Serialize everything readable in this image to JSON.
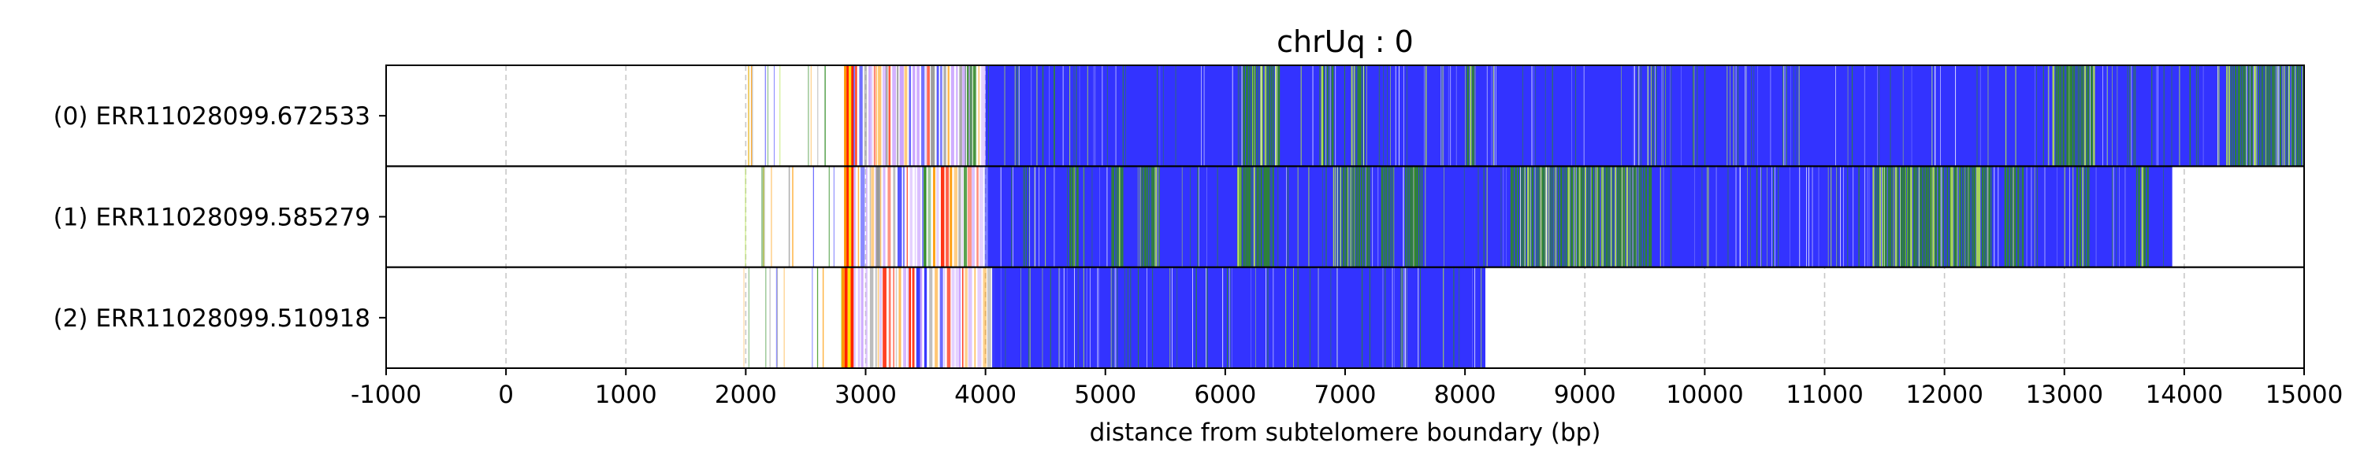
{
  "chart_data": {
    "type": "heatmap",
    "title": "chrUq : 0",
    "xlabel": "distance from subtelomere boundary (bp)",
    "ylabel": "",
    "xlim": [
      -1000,
      15000
    ],
    "xticks": [
      -1000,
      0,
      1000,
      2000,
      3000,
      4000,
      5000,
      6000,
      7000,
      8000,
      9000,
      10000,
      11000,
      12000,
      13000,
      14000,
      15000
    ],
    "xtick_labels": [
      "-1000",
      "0",
      "1000",
      "2000",
      "3000",
      "4000",
      "5000",
      "6000",
      "7000",
      "8000",
      "9000",
      "10000",
      "11000",
      "12000",
      "13000",
      "14000",
      "15000"
    ],
    "grid": "vertical dashed",
    "colors": {
      "repeat_main": "#3333ff",
      "repeat_variant": "#2e8b22",
      "variant_light": "#b4e54a",
      "hot_red": "#ff2200",
      "hot_orange": "#ff9900",
      "hot_yellow": "#ffe000",
      "lilac": "#c8a0ff",
      "grey": "#999999"
    },
    "reads": [
      {
        "label": "(0) ERR11028099.672533",
        "start": 1980,
        "end": 15000,
        "blue_from": 4000,
        "hot_zone": [
          2820,
          2900
        ],
        "green_clusters": [
          [
            3830,
            3920
          ],
          [
            6150,
            6450
          ],
          [
            6800,
            6900
          ],
          [
            7050,
            7150
          ],
          [
            8000,
            8080
          ],
          [
            12900,
            13250
          ],
          [
            14350,
            15000
          ]
        ],
        "seed": 11
      },
      {
        "label": "(1) ERR11028099.585279",
        "start": 1920,
        "end": 13900,
        "blue_from": 4020,
        "hot_zone": [
          2820,
          2900
        ],
        "green_clusters": [
          [
            4700,
            4760
          ],
          [
            5050,
            5150
          ],
          [
            5300,
            5450
          ],
          [
            6100,
            6400
          ],
          [
            6900,
            7200
          ],
          [
            7300,
            7400
          ],
          [
            7500,
            7650
          ],
          [
            8380,
            9550
          ],
          [
            11400,
            12400
          ],
          [
            12500,
            12650
          ],
          [
            13100,
            13200
          ],
          [
            13600,
            13700
          ]
        ],
        "seed": 23
      },
      {
        "label": "(2) ERR11028099.510918",
        "start": 1950,
        "end": 8170,
        "blue_from": 4080,
        "hot_zone": [
          2800,
          2900
        ],
        "green_clusters": [],
        "seed": 37
      }
    ]
  }
}
